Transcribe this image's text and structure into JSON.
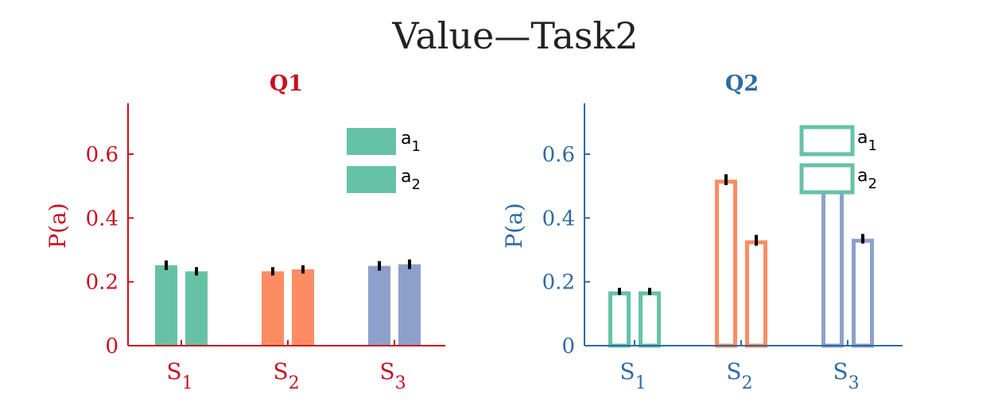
{
  "title": "Value—Task2",
  "colors": {
    "q1_axis": "#c8101f",
    "q2_axis": "#2e6ba3",
    "s1": "#66c2a5",
    "s2": "#fc8d62",
    "s3": "#8da0cb",
    "errorbar": "#000000"
  },
  "chart_data": [
    {
      "type": "bar",
      "title": "Q1",
      "ylabel": "P(a)",
      "xlabel": "",
      "ylim": [
        0,
        0.75
      ],
      "yticks": [
        0,
        0.2,
        0.4,
        0.6
      ],
      "ytick_labels": [
        "0",
        "0.2",
        "0.4",
        "0.6"
      ],
      "style": "filled",
      "categories": [
        {
          "base": "S",
          "sub": "1"
        },
        {
          "base": "S",
          "sub": "2"
        },
        {
          "base": "S",
          "sub": "3"
        }
      ],
      "series": [
        {
          "name": "a1",
          "label_base": "a",
          "label_sub": "1",
          "values": [
            0.252,
            0.233,
            0.25
          ],
          "errors": [
            0.01,
            0.008,
            0.01
          ]
        },
        {
          "name": "a2",
          "label_base": "a",
          "label_sub": "2",
          "values": [
            0.233,
            0.239,
            0.255
          ],
          "errors": [
            0.008,
            0.008,
            0.01
          ]
        }
      ],
      "legend": "top-right"
    },
    {
      "type": "bar",
      "title": "Q2",
      "ylabel": "P(a)",
      "xlabel": "",
      "ylim": [
        0,
        0.75
      ],
      "yticks": [
        0,
        0.2,
        0.4,
        0.6
      ],
      "ytick_labels": [
        "0",
        "0.2",
        "0.4",
        "0.6"
      ],
      "style": "outline",
      "categories": [
        {
          "base": "S",
          "sub": "1"
        },
        {
          "base": "S",
          "sub": "2"
        },
        {
          "base": "S",
          "sub": "3"
        }
      ],
      "series": [
        {
          "name": "a1",
          "label_base": "a",
          "label_sub": "1",
          "values": [
            0.17,
            0.52,
            0.5
          ],
          "errors": [
            0.006,
            0.012,
            0.012
          ]
        },
        {
          "name": "a2",
          "label_base": "a",
          "label_sub": "2",
          "values": [
            0.17,
            0.33,
            0.335
          ],
          "errors": [
            0.006,
            0.012,
            0.01
          ]
        }
      ],
      "legend": "top-right"
    }
  ]
}
